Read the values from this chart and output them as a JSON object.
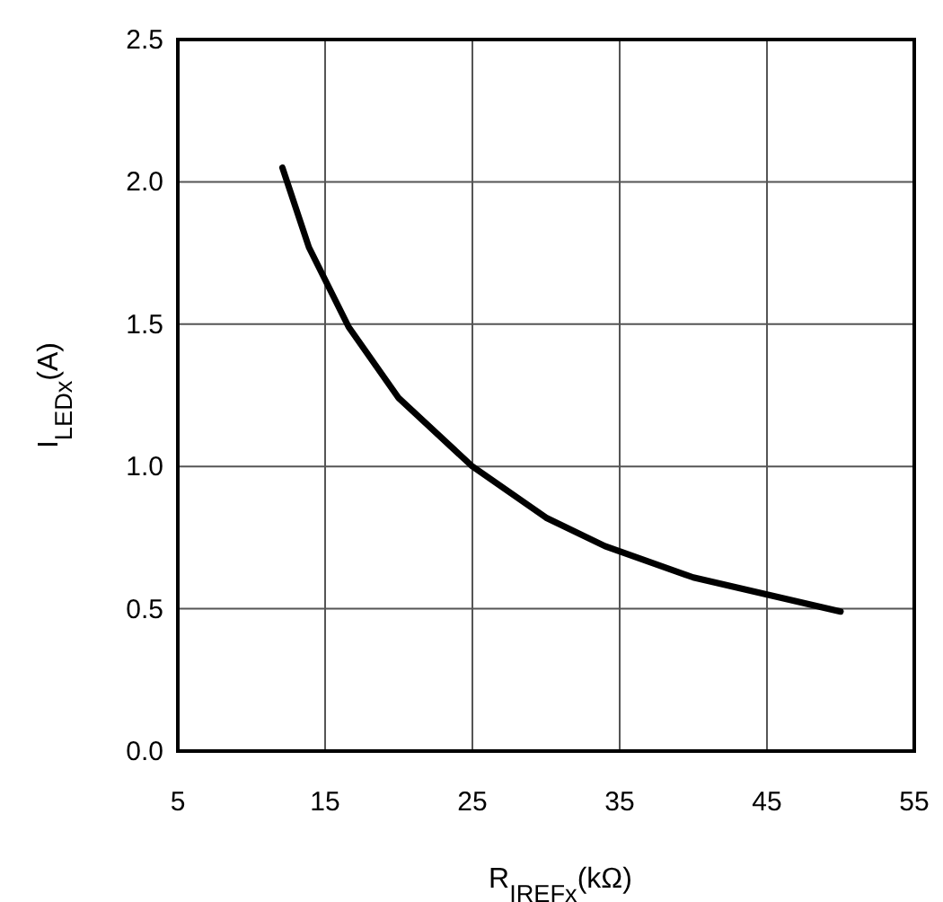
{
  "chart_data": {
    "type": "line",
    "xlabel": "R$_{IREFx}$(kΩ)",
    "ylabel": "I$_{LEDx}$(A)",
    "x": [
      12.1,
      13.9,
      16.6,
      20,
      25,
      30,
      34,
      40,
      45,
      50
    ],
    "series": [
      {
        "color": "#000000",
        "values": [
          2.05,
          1.77,
          1.49,
          1.24,
          1.0,
          0.82,
          0.72,
          0.61,
          0.55,
          0.49
        ]
      }
    ],
    "xlim": [
      5,
      55
    ],
    "xticks": [
      5,
      15,
      25,
      35,
      45,
      55
    ],
    "ylim": [
      0,
      2.5
    ],
    "yticks": [
      {
        "value": 0,
        "label": "0.0"
      },
      {
        "value": 0.5,
        "label": "0.5"
      },
      {
        "value": 1,
        "label": "1.0"
      },
      {
        "value": 1.5,
        "label": "1.5"
      },
      {
        "value": 2,
        "label": "2.0"
      },
      {
        "value": 2.5,
        "label": "2.5"
      }
    ],
    "grid": true,
    "marker": "none",
    "line_style": "solid"
  }
}
